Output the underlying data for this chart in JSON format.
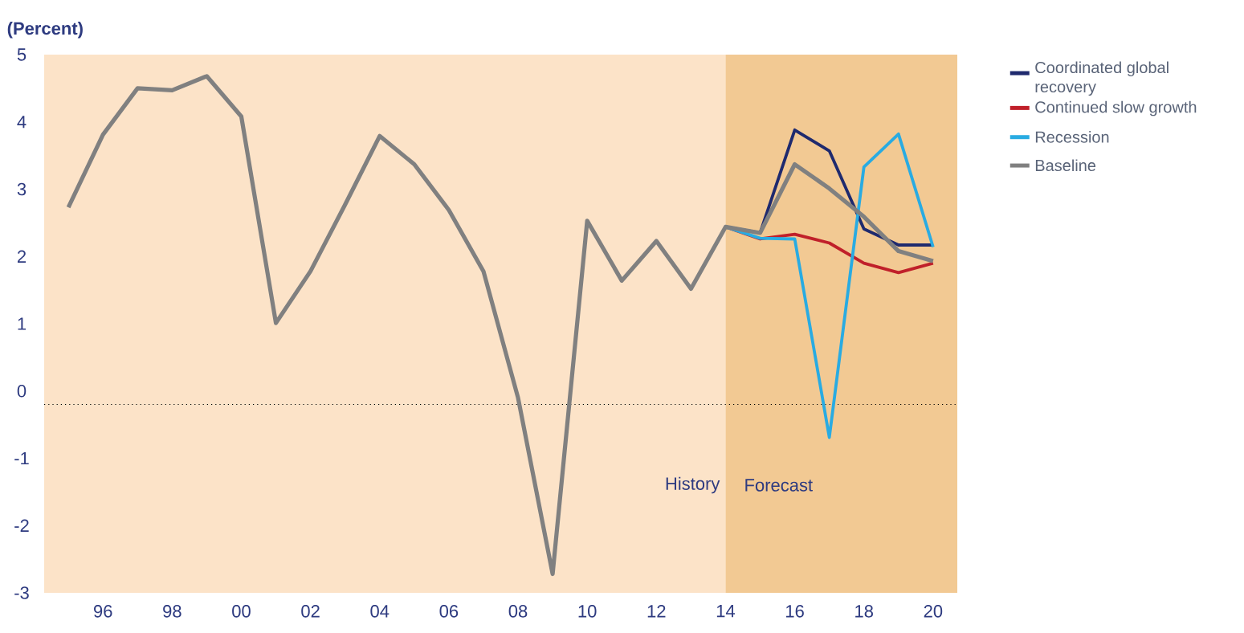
{
  "chart_data": {
    "type": "line",
    "ylabel": "(Percent)",
    "series": [
      {
        "name": "Coordinated global recovery",
        "color": "#1f2a6e",
        "x": [
          2014,
          2015,
          2016,
          2017,
          2018,
          2019,
          2020
        ],
        "values": [
          2.44,
          2.35,
          3.88,
          3.57,
          2.41,
          2.17,
          2.17
        ]
      },
      {
        "name": "Continued slow growth",
        "color": "#c0202a",
        "x": [
          2014,
          2015,
          2016,
          2017,
          2018,
          2019,
          2020
        ],
        "values": [
          2.44,
          2.26,
          2.33,
          2.2,
          1.9,
          1.76,
          1.9
        ]
      },
      {
        "name": "Recession",
        "color": "#29abe2",
        "x": [
          2014,
          2015,
          2016,
          2017,
          2018,
          2019,
          2020
        ],
        "values": [
          2.44,
          2.27,
          2.26,
          -0.69,
          3.33,
          3.82,
          2.14
        ]
      },
      {
        "name": "Baseline",
        "color": "#808080",
        "x": [
          1995,
          1996,
          1997,
          1998,
          1999,
          2000,
          2001,
          2002,
          2003,
          2004,
          2005,
          2006,
          2007,
          2008,
          2009,
          2010,
          2011,
          2012,
          2013,
          2014,
          2015,
          2016,
          2017,
          2018,
          2019,
          2020
        ],
        "values": [
          2.73,
          3.81,
          4.5,
          4.47,
          4.68,
          4.08,
          1.01,
          1.78,
          2.77,
          3.79,
          3.37,
          2.69,
          1.78,
          -0.1,
          -2.72,
          2.53,
          1.64,
          2.23,
          1.52,
          2.44,
          2.35,
          3.37,
          3.01,
          2.59,
          2.08,
          1.93
        ]
      }
    ],
    "xlim": [
      1994.3,
      2020.7
    ],
    "ylim": [
      -3,
      5
    ],
    "xticks": [
      {
        "value": 1996,
        "label": "96"
      },
      {
        "value": 1998,
        "label": "98"
      },
      {
        "value": 2000,
        "label": "00"
      },
      {
        "value": 2002,
        "label": "02"
      },
      {
        "value": 2004,
        "label": "04"
      },
      {
        "value": 2006,
        "label": "06"
      },
      {
        "value": 2008,
        "label": "08"
      },
      {
        "value": 2010,
        "label": "10"
      },
      {
        "value": 2012,
        "label": "12"
      },
      {
        "value": 2014,
        "label": "14"
      },
      {
        "value": 2016,
        "label": "16"
      },
      {
        "value": 2018,
        "label": "18"
      },
      {
        "value": 2020,
        "label": "20"
      }
    ],
    "yticks": [
      -3,
      -2,
      -1,
      0,
      1,
      2,
      3,
      4,
      5
    ],
    "bands": [
      {
        "axis": "x",
        "from": 1994.3,
        "to": 2014,
        "label": "History",
        "color": "#fce3c8"
      },
      {
        "axis": "x",
        "from": 2014,
        "to": 2020.7,
        "label": "Forecast",
        "color": "#f2c993"
      }
    ],
    "ref_lines": [
      {
        "axis": "y",
        "value": -0.2,
        "color": "#000000",
        "line_style": "dotted"
      }
    ],
    "legend": "right"
  }
}
